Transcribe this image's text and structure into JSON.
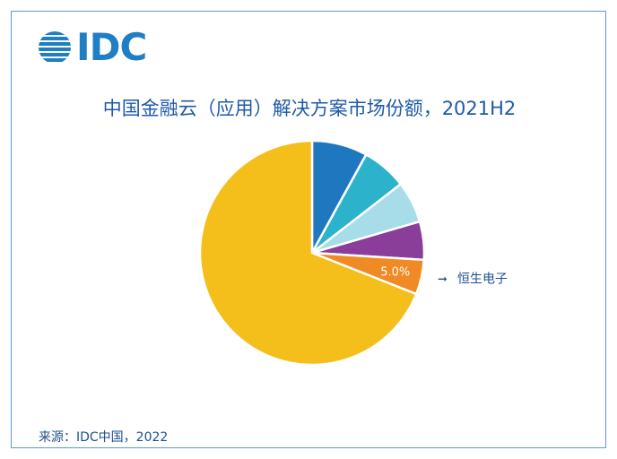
{
  "logo": {
    "text": "IDC"
  },
  "chart_data": {
    "type": "pie",
    "title": "中国金融云（应用）解决方案市场份额，2021H2",
    "slices": [
      {
        "label": "",
        "value": 8.0,
        "color": "#1f77c0"
      },
      {
        "label": "",
        "value": 6.5,
        "color": "#2db2cc"
      },
      {
        "label": "",
        "value": 6.0,
        "color": "#a6dde8"
      },
      {
        "label": "",
        "value": 5.5,
        "color": "#8b3d9a"
      },
      {
        "label": "恒生电子",
        "value": 5.0,
        "color": "#f08a24",
        "data_label": "5.0%"
      },
      {
        "label": "",
        "value": 69.0,
        "color": "#f4bf1b"
      }
    ],
    "callout_arrow": "➞"
  },
  "footer": {
    "source": "来源：IDC中国，2022"
  }
}
